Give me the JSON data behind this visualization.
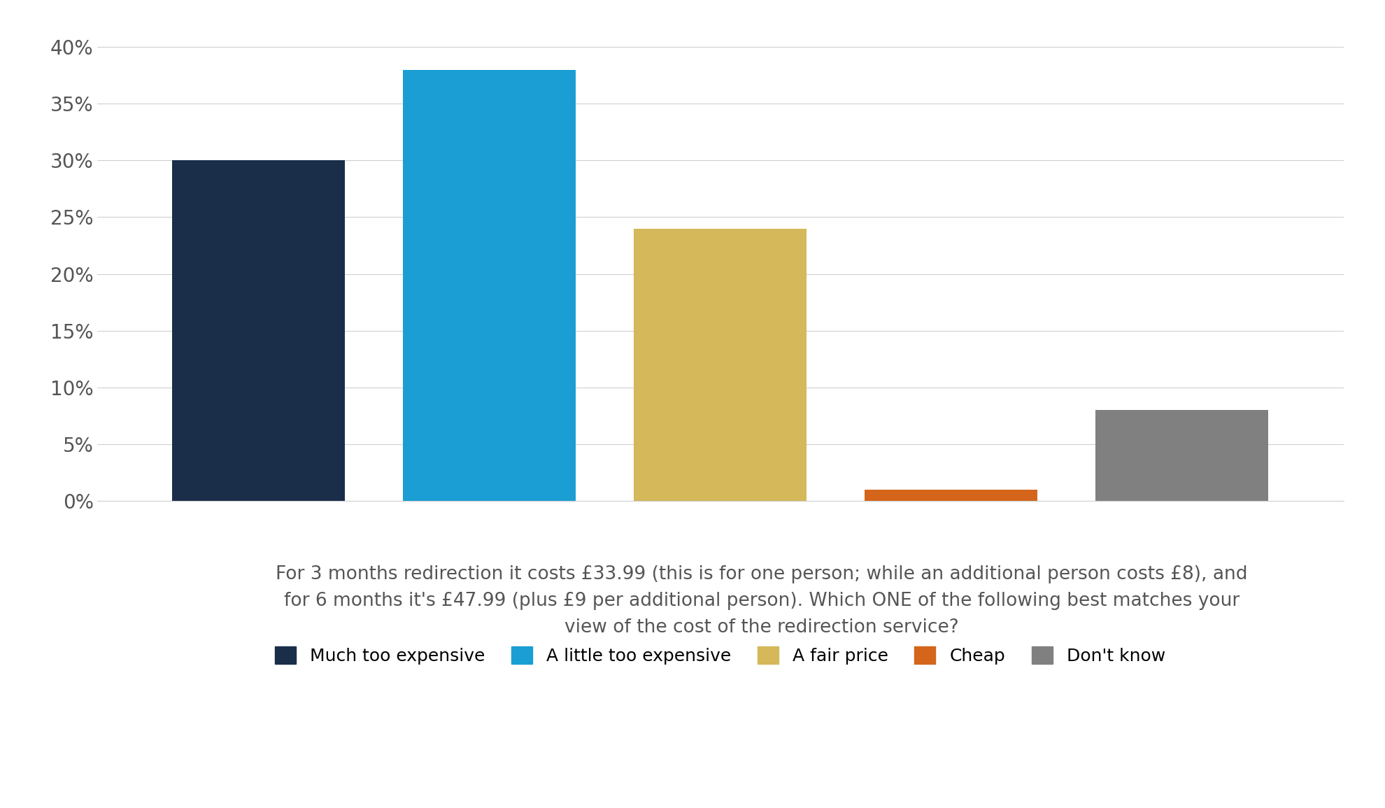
{
  "categories": [
    "Much too expensive",
    "A little too expensive",
    "A fair price",
    "Cheap",
    "Don't know"
  ],
  "values": [
    0.3,
    0.38,
    0.24,
    0.01,
    0.08
  ],
  "bar_colors": [
    "#1a2e4a",
    "#1a9ed4",
    "#d4b85a",
    "#d4651a",
    "#808080"
  ],
  "ylim": [
    0,
    0.42
  ],
  "yticks": [
    0.0,
    0.05,
    0.1,
    0.15,
    0.2,
    0.25,
    0.3,
    0.35,
    0.4
  ],
  "ytick_labels": [
    "0%",
    "5%",
    "10%",
    "15%",
    "20%",
    "25%",
    "30%",
    "35%",
    "40%"
  ],
  "xlabel_text": "For 3 months redirection it costs £33.99 (this is for one person; while an additional person costs £8), and\nfor 6 months it's £47.99 (plus £9 per additional person). Which ONE of the following best matches your\nview of the cost of the redirection service?",
  "legend_labels": [
    "Much too expensive",
    "A little too expensive",
    "A fair price",
    "Cheap",
    "Don't know"
  ],
  "background_color": "#ffffff",
  "grid_color": "#d0d0d0",
  "bar_width": 0.75,
  "figsize": [
    19.8,
    11.55
  ],
  "dpi": 100,
  "x_positions": [
    1,
    2,
    3,
    4,
    5
  ]
}
